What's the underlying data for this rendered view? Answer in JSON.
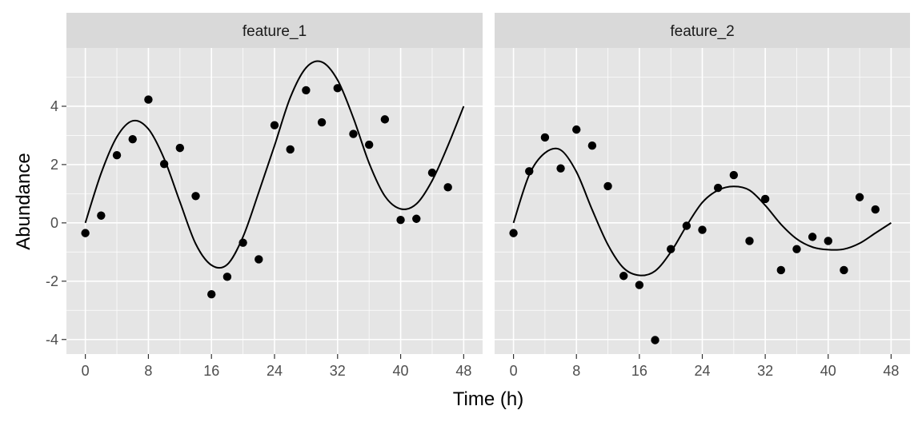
{
  "chart_data": {
    "type": "scatter",
    "facet_layout": "facet_wrap, 1 row x 2 columns, shared axes",
    "xlabel": "Time (h)",
    "ylabel": "Abundance",
    "xlim": [
      -2.4,
      50.4
    ],
    "ylim": [
      -4.5,
      6.0
    ],
    "x_ticks": [
      0,
      8,
      16,
      24,
      32,
      40,
      48
    ],
    "x_tick_labels": [
      "0",
      "8",
      "16",
      "24",
      "32",
      "40",
      "48"
    ],
    "y_ticks": [
      -4,
      -2,
      0,
      2,
      4
    ],
    "y_tick_labels": [
      "-4",
      "-2",
      "0",
      "2",
      "4"
    ],
    "grid": true,
    "theme_colors": {
      "panel_bg": "#e5e5e5",
      "strip_bg": "#d9d9d9",
      "grid": "#ffffff",
      "points": "#000000",
      "line": "#000000",
      "tick_text": "#4d4d4d",
      "ticks": "#333333"
    },
    "facets": [
      {
        "strip": "feature_1",
        "points": [
          {
            "x": 0,
            "y": -0.35
          },
          {
            "x": 2,
            "y": 0.25
          },
          {
            "x": 4,
            "y": 2.32
          },
          {
            "x": 6,
            "y": 2.87
          },
          {
            "x": 8,
            "y": 4.23
          },
          {
            "x": 10,
            "y": 2.02
          },
          {
            "x": 12,
            "y": 2.57
          },
          {
            "x": 14,
            "y": 0.92
          },
          {
            "x": 16,
            "y": -2.45
          },
          {
            "x": 18,
            "y": -1.85
          },
          {
            "x": 20,
            "y": -0.68
          },
          {
            "x": 22,
            "y": -1.25
          },
          {
            "x": 24,
            "y": 3.35
          },
          {
            "x": 26,
            "y": 2.52
          },
          {
            "x": 28,
            "y": 4.55
          },
          {
            "x": 30,
            "y": 3.45
          },
          {
            "x": 32,
            "y": 4.62
          },
          {
            "x": 34,
            "y": 3.05
          },
          {
            "x": 36,
            "y": 2.68
          },
          {
            "x": 38,
            "y": 3.55
          },
          {
            "x": 40,
            "y": 0.1
          },
          {
            "x": 42,
            "y": 0.14
          },
          {
            "x": 44,
            "y": 1.72
          },
          {
            "x": 46,
            "y": 1.22
          }
        ],
        "fit_curve": [
          {
            "x": 0,
            "y": 0.0
          },
          {
            "x": 2,
            "y": 1.7
          },
          {
            "x": 4,
            "y": 2.95
          },
          {
            "x": 6,
            "y": 3.5
          },
          {
            "x": 8,
            "y": 3.22
          },
          {
            "x": 10,
            "y": 2.2
          },
          {
            "x": 12,
            "y": 0.72
          },
          {
            "x": 14,
            "y": -0.72
          },
          {
            "x": 16,
            "y": -1.45
          },
          {
            "x": 18,
            "y": -1.43
          },
          {
            "x": 20,
            "y": -0.48
          },
          {
            "x": 22,
            "y": 1.05
          },
          {
            "x": 24,
            "y": 2.65
          },
          {
            "x": 26,
            "y": 4.3
          },
          {
            "x": 28,
            "y": 5.32
          },
          {
            "x": 30,
            "y": 5.52
          },
          {
            "x": 32,
            "y": 4.9
          },
          {
            "x": 34,
            "y": 3.6
          },
          {
            "x": 36,
            "y": 2.05
          },
          {
            "x": 38,
            "y": 0.92
          },
          {
            "x": 40,
            "y": 0.48
          },
          {
            "x": 42,
            "y": 0.65
          },
          {
            "x": 44,
            "y": 1.45
          },
          {
            "x": 46,
            "y": 2.65
          },
          {
            "x": 48,
            "y": 4.0
          }
        ]
      },
      {
        "strip": "feature_2",
        "points": [
          {
            "x": 0,
            "y": -0.35
          },
          {
            "x": 2,
            "y": 1.77
          },
          {
            "x": 4,
            "y": 2.93
          },
          {
            "x": 6,
            "y": 1.87
          },
          {
            "x": 8,
            "y": 3.2
          },
          {
            "x": 10,
            "y": 2.65
          },
          {
            "x": 12,
            "y": 1.26
          },
          {
            "x": 14,
            "y": -1.82
          },
          {
            "x": 16,
            "y": -2.13
          },
          {
            "x": 18,
            "y": -4.02
          },
          {
            "x": 20,
            "y": -0.9
          },
          {
            "x": 22,
            "y": -0.1
          },
          {
            "x": 24,
            "y": -0.24
          },
          {
            "x": 26,
            "y": 1.2
          },
          {
            "x": 28,
            "y": 1.64
          },
          {
            "x": 30,
            "y": -0.62
          },
          {
            "x": 32,
            "y": 0.82
          },
          {
            "x": 34,
            "y": -1.62
          },
          {
            "x": 36,
            "y": -0.9
          },
          {
            "x": 38,
            "y": -0.48
          },
          {
            "x": 40,
            "y": -0.62
          },
          {
            "x": 42,
            "y": -1.62
          },
          {
            "x": 44,
            "y": 0.88
          },
          {
            "x": 46,
            "y": 0.46
          }
        ],
        "fit_curve": [
          {
            "x": 0,
            "y": 0.0
          },
          {
            "x": 2,
            "y": 1.65
          },
          {
            "x": 4,
            "y": 2.4
          },
          {
            "x": 6,
            "y": 2.5
          },
          {
            "x": 8,
            "y": 1.75
          },
          {
            "x": 10,
            "y": 0.45
          },
          {
            "x": 12,
            "y": -0.75
          },
          {
            "x": 14,
            "y": -1.55
          },
          {
            "x": 16,
            "y": -1.8
          },
          {
            "x": 18,
            "y": -1.65
          },
          {
            "x": 20,
            "y": -1.0
          },
          {
            "x": 22,
            "y": -0.1
          },
          {
            "x": 24,
            "y": 0.7
          },
          {
            "x": 26,
            "y": 1.12
          },
          {
            "x": 28,
            "y": 1.25
          },
          {
            "x": 30,
            "y": 1.12
          },
          {
            "x": 32,
            "y": 0.6
          },
          {
            "x": 34,
            "y": -0.05
          },
          {
            "x": 36,
            "y": -0.55
          },
          {
            "x": 38,
            "y": -0.83
          },
          {
            "x": 40,
            "y": -0.92
          },
          {
            "x": 42,
            "y": -0.9
          },
          {
            "x": 44,
            "y": -0.7
          },
          {
            "x": 46,
            "y": -0.35
          },
          {
            "x": 48,
            "y": 0.0
          }
        ]
      }
    ]
  }
}
